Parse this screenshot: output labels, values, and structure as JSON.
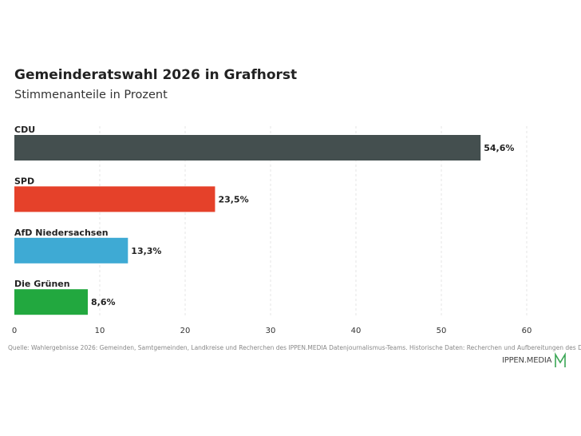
{
  "header": {
    "title": "Gemeinderatswahl 2026 in Grafhorst",
    "subtitle": "Stimmenanteile in Prozent"
  },
  "chart_data": {
    "type": "bar",
    "orientation": "horizontal",
    "categories": [
      "CDU",
      "SPD",
      "AfD Niedersachsen",
      "Die Grünen"
    ],
    "values": [
      54.6,
      23.5,
      13.3,
      8.6
    ],
    "value_labels": [
      "54,6%",
      "23,5%",
      "13,3%",
      "8,6%"
    ],
    "colors": [
      "#444f4f",
      "#e5412a",
      "#3eaad4",
      "#22a83f"
    ],
    "xlim": [
      0,
      60
    ],
    "xticks": [
      0,
      10,
      20,
      30,
      40,
      50,
      60
    ],
    "grid": true
  },
  "footer": {
    "source": "Quelle: Wahlergebnisse 2026: Gemeinden, Samtgemeinden, Landkreise und Recherchen des IPPEN.MEDIA Datenjournalismus-Teams. Historische Daten: Recherchen und Aufbereitungen des Datenjournalismus-Teams",
    "logo_text": "IPPEN.MEDIA",
    "logo_color": "#3aa655"
  }
}
